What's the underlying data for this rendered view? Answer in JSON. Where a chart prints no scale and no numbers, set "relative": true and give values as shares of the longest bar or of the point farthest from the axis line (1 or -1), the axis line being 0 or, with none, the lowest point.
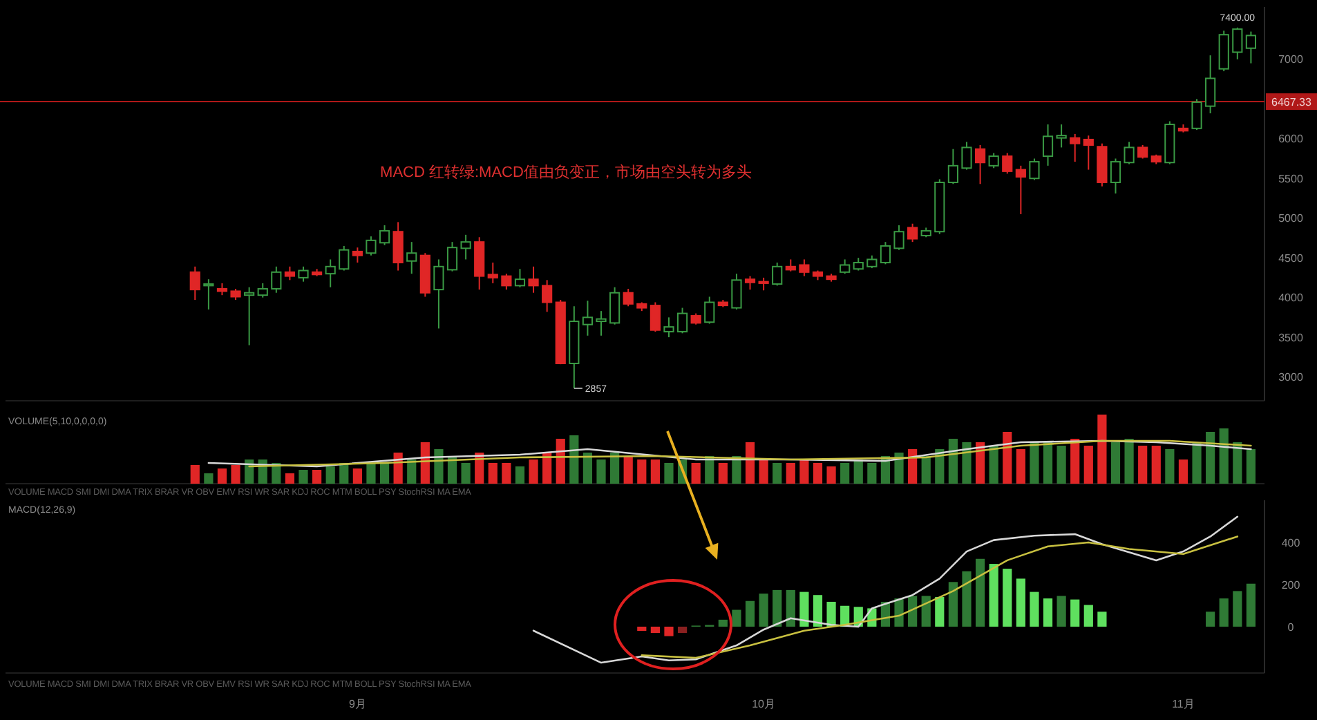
{
  "chart_data": [
    {
      "type": "candlestick",
      "x": [
        "--08-20",
        "--08-21",
        "--08-22",
        "--08-23",
        "--08-24",
        "--08-25",
        "--08-26",
        "--08-27",
        "--08-28",
        "--08-29",
        "--08-30",
        "--08-31",
        "--09-01",
        "--09-02",
        "--09-03",
        "--09-04",
        "--09-05",
        "--09-06",
        "--09-07",
        "--09-08",
        "--09-09",
        "--09-10",
        "--09-11",
        "--09-12",
        "--09-13",
        "--09-14",
        "--09-15",
        "--09-16",
        "--09-17",
        "--09-18",
        "--09-19",
        "--09-20",
        "--09-21",
        "--09-22",
        "--09-23",
        "--09-24",
        "--09-25",
        "--09-26",
        "--09-27",
        "--09-28",
        "--09-29",
        "--09-30",
        "--10-01",
        "--10-02",
        "--10-03",
        "--10-04",
        "--10-05",
        "--10-06",
        "--10-07",
        "--10-08",
        "--10-09",
        "--10-10",
        "--10-11",
        "--10-12",
        "--10-13",
        "--10-14",
        "--10-15",
        "--10-16",
        "--10-17",
        "--10-18",
        "--10-19",
        "--10-20",
        "--10-21",
        "--10-22",
        "--10-23",
        "--10-24",
        "--10-25",
        "--10-26",
        "--10-27",
        "--10-28",
        "--10-29",
        "--10-30",
        "--10-31",
        "--11-01",
        "--11-02",
        "--11-03",
        "--11-04",
        "--11-05",
        "--11-06"
      ],
      "ohlc": [
        [
          4320,
          4390,
          3970,
          4100
        ],
        [
          4150,
          4230,
          3850,
          4170
        ],
        [
          4110,
          4180,
          4030,
          4080
        ],
        [
          4080,
          4110,
          3970,
          4010
        ],
        [
          4030,
          4130,
          3400,
          4060
        ],
        [
          4030,
          4180,
          4000,
          4110
        ],
        [
          4110,
          4390,
          4060,
          4320
        ],
        [
          4320,
          4390,
          4220,
          4270
        ],
        [
          4250,
          4390,
          4200,
          4340
        ],
        [
          4320,
          4360,
          4270,
          4290
        ],
        [
          4300,
          4480,
          4130,
          4390
        ],
        [
          4360,
          4650,
          4340,
          4600
        ],
        [
          4580,
          4630,
          4440,
          4530
        ],
        [
          4560,
          4770,
          4530,
          4720
        ],
        [
          4690,
          4910,
          4660,
          4840
        ],
        [
          4830,
          4950,
          4340,
          4440
        ],
        [
          4460,
          4700,
          4300,
          4560
        ],
        [
          4530,
          4560,
          4010,
          4060
        ],
        [
          4100,
          4480,
          3610,
          4390
        ],
        [
          4350,
          4700,
          4330,
          4630
        ],
        [
          4620,
          4790,
          4480,
          4700
        ],
        [
          4700,
          4760,
          4100,
          4270
        ],
        [
          4290,
          4440,
          4180,
          4250
        ],
        [
          4270,
          4300,
          4100,
          4150
        ],
        [
          4150,
          4360,
          4130,
          4230
        ],
        [
          4230,
          4390,
          4060,
          4150
        ],
        [
          4150,
          4220,
          3820,
          3940
        ],
        [
          3940,
          3970,
          3160,
          3170
        ],
        [
          3170,
          3890,
          2857,
          3700
        ],
        [
          3660,
          3960,
          3520,
          3750
        ],
        [
          3700,
          3830,
          3520,
          3730
        ],
        [
          3680,
          4130,
          3660,
          4060
        ],
        [
          4060,
          4110,
          3890,
          3920
        ],
        [
          3920,
          3940,
          3830,
          3870
        ],
        [
          3900,
          3940,
          3570,
          3590
        ],
        [
          3570,
          3750,
          3500,
          3630
        ],
        [
          3570,
          3870,
          3550,
          3800
        ],
        [
          3770,
          3800,
          3660,
          3680
        ],
        [
          3690,
          4010,
          3670,
          3940
        ],
        [
          3940,
          3970,
          3880,
          3900
        ],
        [
          3870,
          4300,
          3850,
          4220
        ],
        [
          4230,
          4270,
          4100,
          4190
        ],
        [
          4200,
          4250,
          4090,
          4180
        ],
        [
          4170,
          4440,
          4150,
          4390
        ],
        [
          4390,
          4480,
          4330,
          4350
        ],
        [
          4410,
          4480,
          4270,
          4320
        ],
        [
          4320,
          4340,
          4220,
          4270
        ],
        [
          4270,
          4300,
          4200,
          4230
        ],
        [
          4320,
          4480,
          4300,
          4410
        ],
        [
          4360,
          4500,
          4340,
          4440
        ],
        [
          4390,
          4530,
          4370,
          4480
        ],
        [
          4440,
          4700,
          4420,
          4650
        ],
        [
          4620,
          4910,
          4600,
          4830
        ],
        [
          4880,
          4930,
          4700,
          4740
        ],
        [
          4780,
          4880,
          4760,
          4840
        ],
        [
          4830,
          5490,
          4800,
          5450
        ],
        [
          5450,
          5870,
          5430,
          5660
        ],
        [
          5630,
          5960,
          5610,
          5890
        ],
        [
          5870,
          5920,
          5430,
          5700
        ],
        [
          5660,
          5820,
          5630,
          5780
        ],
        [
          5780,
          5820,
          5560,
          5590
        ],
        [
          5610,
          5660,
          5050,
          5520
        ],
        [
          5500,
          5750,
          5480,
          5710
        ],
        [
          5780,
          6180,
          5660,
          6030
        ],
        [
          6010,
          6180,
          5890,
          6040
        ],
        [
          6010,
          6060,
          5710,
          5940
        ],
        [
          5990,
          6040,
          5610,
          5920
        ],
        [
          5900,
          5940,
          5400,
          5450
        ],
        [
          5450,
          5750,
          5310,
          5710
        ],
        [
          5700,
          5960,
          5680,
          5890
        ],
        [
          5890,
          5920,
          5750,
          5770
        ],
        [
          5780,
          5800,
          5680,
          5710
        ],
        [
          5700,
          6220,
          5680,
          6180
        ],
        [
          6130,
          6180,
          6080,
          6100
        ],
        [
          6130,
          6500,
          6110,
          6460
        ],
        [
          6410,
          7050,
          6320,
          6760
        ],
        [
          6880,
          7360,
          6850,
          7310
        ],
        [
          7090,
          7400,
          7000,
          7380
        ],
        [
          7140,
          7350,
          6950,
          7300
        ]
      ],
      "xlim": [
        "--08-06",
        "--11-07"
      ],
      "ylim": [
        2700,
        7660
      ],
      "yticks": [
        3000,
        3500,
        4000,
        4500,
        5000,
        5500,
        6000,
        7000
      ],
      "tick_labels": "y",
      "ref_lines": [
        {
          "axis": "y",
          "value": 6467.33,
          "label": "6467.33",
          "color": "#b01818"
        }
      ],
      "annotations": [
        "MACD 红转绿:MACD值由负变正，市场由空头转为多头",
        {
          "text": "2857",
          "x": "--09-17",
          "y": 2857
        },
        {
          "text": "7400.00",
          "x": "--11-05",
          "y": 7400
        }
      ]
    },
    {
      "type": "bar",
      "title": "VOLUME(5,10,0,0,0,0)",
      "relative": true,
      "xlim": [
        "--08-06",
        "--11-07"
      ],
      "tick_labels": false,
      "annotations": [
        "VOLUME MACD SMI DMI DMA TRIX BRAR VR OBV EMV RSI WR SAR KDJ ROC MTM BOLL PSY StochRSI MA EMA"
      ],
      "series": [
        {
          "type": "bar",
          "x": [
            "--08-20",
            "--08-21",
            "--08-22",
            "--08-23",
            "--08-24",
            "--08-25",
            "--08-26",
            "--08-27",
            "--08-28",
            "--08-29",
            "--08-30",
            "--08-31",
            "--09-01",
            "--09-02",
            "--09-03",
            "--09-04",
            "--09-05",
            "--09-06",
            "--09-07",
            "--09-08",
            "--09-09",
            "--09-10",
            "--09-11",
            "--09-12",
            "--09-13",
            "--09-14",
            "--09-15",
            "--09-16",
            "--09-17",
            "--09-18",
            "--09-19",
            "--09-20",
            "--09-21",
            "--09-22",
            "--09-23",
            "--09-24",
            "--09-25",
            "--09-26",
            "--09-27",
            "--09-28",
            "--09-29",
            "--09-30",
            "--10-01",
            "--10-02",
            "--10-03",
            "--10-04",
            "--10-05",
            "--10-06",
            "--10-07",
            "--10-08",
            "--10-09",
            "--10-10",
            "--10-11",
            "--10-12",
            "--10-13",
            "--10-14",
            "--10-15",
            "--10-16",
            "--10-17",
            "--10-18",
            "--10-19",
            "--10-20",
            "--10-21",
            "--10-22",
            "--10-23",
            "--10-24",
            "--10-25",
            "--10-26",
            "--10-27",
            "--10-28",
            "--10-29",
            "--10-30",
            "--10-31",
            "--11-01",
            "--11-02",
            "--11-03",
            "--11-04",
            "--11-05",
            "--11-06"
          ],
          "values": [
            0.27,
            0.15,
            0.22,
            0.27,
            0.35,
            0.35,
            0.3,
            0.15,
            0.2,
            0.2,
            0.25,
            0.3,
            0.22,
            0.3,
            0.3,
            0.45,
            0.35,
            0.6,
            0.5,
            0.4,
            0.3,
            0.45,
            0.3,
            0.3,
            0.25,
            0.35,
            0.45,
            0.65,
            0.7,
            0.45,
            0.35,
            0.45,
            0.4,
            0.35,
            0.35,
            0.3,
            0.35,
            0.3,
            0.4,
            0.3,
            0.4,
            0.6,
            0.35,
            0.3,
            0.3,
            0.35,
            0.3,
            0.25,
            0.3,
            0.35,
            0.3,
            0.4,
            0.45,
            0.5,
            0.4,
            0.5,
            0.65,
            0.6,
            0.6,
            0.55,
            0.75,
            0.5,
            0.6,
            0.6,
            0.55,
            0.65,
            0.55,
            1.0,
            0.6,
            0.65,
            0.55,
            0.55,
            0.5,
            0.35,
            0.6,
            0.75,
            0.8,
            0.6,
            0.5
          ],
          "colors": [
            "#e02626",
            "#2f7a35",
            "#e02626",
            "#e02626",
            "#2f7a35",
            "#2f7a35",
            "#2f7a35",
            "#e02626",
            "#2f7a35",
            "#e02626",
            "#2f7a35",
            "#2f7a35",
            "#e02626",
            "#2f7a35",
            "#2f7a35",
            "#e02626",
            "#2f7a35",
            "#e02626",
            "#2f7a35",
            "#2f7a35",
            "#2f7a35",
            "#e02626",
            "#e02626",
            "#e02626",
            "#2f7a35",
            "#e02626",
            "#e02626",
            "#e02626",
            "#2f7a35",
            "#2f7a35",
            "#2f7a35",
            "#2f7a35",
            "#e02626",
            "#e02626",
            "#e02626",
            "#2f7a35",
            "#2f7a35",
            "#e02626",
            "#2f7a35",
            "#e02626",
            "#2f7a35",
            "#e02626",
            "#e02626",
            "#2f7a35",
            "#e02626",
            "#e02626",
            "#e02626",
            "#e02626",
            "#2f7a35",
            "#2f7a35",
            "#2f7a35",
            "#2f7a35",
            "#2f7a35",
            "#e02626",
            "#2f7a35",
            "#2f7a35",
            "#2f7a35",
            "#2f7a35",
            "#e02626",
            "#2f7a35",
            "#e02626",
            "#e02626",
            "#2f7a35",
            "#2f7a35",
            "#2f7a35",
            "#e02626",
            "#e02626",
            "#e02626",
            "#2f7a35",
            "#2f7a35",
            "#e02626",
            "#e02626",
            "#2f7a35",
            "#e02626",
            "#2f7a35",
            "#2f7a35",
            "#2f7a35",
            "#2f7a35",
            "#2f7a35"
          ]
        },
        {
          "type": "line",
          "color": "#d8d8d8",
          "x": [
            "--08-21",
            "--08-29",
            "--09-06",
            "--09-13",
            "--09-18",
            "--09-26",
            "--10-03",
            "--10-10",
            "--10-16",
            "--10-20",
            "--10-26",
            "--10-30",
            "--11-03",
            "--11-06"
          ],
          "values": [
            0.3,
            0.25,
            0.38,
            0.42,
            0.5,
            0.35,
            0.35,
            0.33,
            0.5,
            0.6,
            0.62,
            0.6,
            0.55,
            0.5
          ]
        },
        {
          "type": "line",
          "color": "#c8c040",
          "x": [
            "--08-24",
            "--09-03",
            "--09-13",
            "--09-23",
            "--10-03",
            "--10-13",
            "--10-20",
            "--10-26",
            "--10-31",
            "--11-06"
          ],
          "values": [
            0.25,
            0.3,
            0.38,
            0.4,
            0.35,
            0.38,
            0.55,
            0.62,
            0.62,
            0.55
          ]
        }
      ]
    },
    {
      "type": "bar",
      "title": "MACD(12,26,9)",
      "xlim": [
        "--08-06",
        "--11-07"
      ],
      "ylim": [
        -220,
        600
      ],
      "yticks": [
        0,
        200,
        400
      ],
      "xticks": [
        {
          "value": "--09-01",
          "label": "9月"
        },
        {
          "value": "--10-01",
          "label": "10月"
        },
        {
          "value": "--11-01",
          "label": "11月"
        }
      ],
      "annotations": [
        "VOLUME MACD SMI DMI DMA TRIX BRAR VR OBV EMV RSI WR SAR KDJ ROC MTM BOLL PSY StochRSI MA EMA"
      ],
      "series": [
        {
          "type": "bar",
          "x": [
            "--09-22",
            "--09-23",
            "--09-24",
            "--09-25",
            "--09-26",
            "--09-27",
            "--09-28",
            "--09-29",
            "--09-30",
            "--10-01",
            "--10-02",
            "--10-03",
            "--10-04",
            "--10-05",
            "--10-06",
            "--10-07",
            "--10-08",
            "--10-09",
            "--10-10",
            "--10-11",
            "--10-12",
            "--10-13",
            "--10-14",
            "--10-15",
            "--10-16",
            "--10-17",
            "--10-18",
            "--10-19",
            "--10-20",
            "--10-21",
            "--10-22",
            "--10-23",
            "--10-24",
            "--10-25",
            "--10-26",
            "--11-03",
            "--11-04",
            "--11-05",
            "--11-06"
          ],
          "values": [
            -20,
            -30,
            -45,
            -30,
            5,
            8,
            33,
            80,
            122,
            157,
            174,
            174,
            165,
            150,
            118,
            99,
            94,
            87,
            118,
            134,
            146,
            146,
            141,
            212,
            263,
            322,
            298,
            275,
            228,
            165,
            134,
            146,
            129,
            103,
            71,
            71,
            134,
            169,
            204
          ],
          "colors": [
            "#e02626",
            "#e02626",
            "#e02626",
            "#8a2020",
            "#2f7a35",
            "#2f7a35",
            "#2f7a35",
            "#2f7a35",
            "#2f7a35",
            "#2f7a35",
            "#2f7a35",
            "#2f7a35",
            "#5fe05f",
            "#5fe05f",
            "#5fe05f",
            "#5fe05f",
            "#5fe05f",
            "#5fe05f",
            "#2f7a35",
            "#2f7a35",
            "#2f7a35",
            "#2f7a35",
            "#5fe05f",
            "#2f7a35",
            "#2f7a35",
            "#2f7a35",
            "#5fe05f",
            "#5fe05f",
            "#5fe05f",
            "#5fe05f",
            "#5fe05f",
            "#2f7a35",
            "#5fe05f",
            "#5fe05f",
            "#5fe05f",
            "#2f7a35",
            "#2f7a35",
            "#2f7a35",
            "#2f7a35"
          ]
        },
        {
          "type": "line",
          "color": "#d8d8d8",
          "x": [
            "--09-14",
            "--09-19",
            "--09-22",
            "--09-24",
            "--09-26",
            "--09-29",
            "--10-01",
            "--10-03",
            "--10-06",
            "--10-08",
            "--10-09",
            "--10-12",
            "--10-14",
            "--10-16",
            "--10-18",
            "--10-21",
            "--10-24",
            "--10-26",
            "--10-30",
            "--11-01",
            "--11-03",
            "--11-05"
          ],
          "values": [
            -19,
            -171,
            -141,
            -160,
            -155,
            -89,
            -14,
            40,
            9,
            0,
            87,
            150,
            228,
            357,
            411,
            432,
            439,
            392,
            315,
            357,
            428,
            522
          ]
        },
        {
          "type": "line",
          "color": "#c8c040",
          "x": [
            "--09-22",
            "--09-26",
            "--09-30",
            "--10-04",
            "--10-07",
            "--10-11",
            "--10-15",
            "--10-19",
            "--10-22",
            "--10-25",
            "--10-28",
            "--11-01",
            "--11-05"
          ],
          "values": [
            -136,
            -148,
            -89,
            -19,
            9,
            52,
            169,
            315,
            381,
            400,
            369,
            345,
            428
          ]
        }
      ]
    }
  ]
}
